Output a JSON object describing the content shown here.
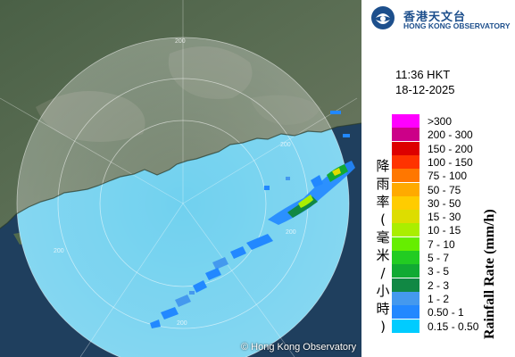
{
  "header": {
    "logo_cn": "香港天文台",
    "logo_en": "HONG KONG OBSERVATORY"
  },
  "timestamp": {
    "time": "11:36 HKT",
    "date": "18-12-2025"
  },
  "map": {
    "copyright": "© Hong Kong Observatory",
    "range_rings": [
      {
        "label": "200"
      },
      {
        "label": "200"
      },
      {
        "label": "200"
      },
      {
        "label": "200"
      },
      {
        "label": "200"
      }
    ]
  },
  "legend": {
    "title_cn": "降雨率(毫米/小時)",
    "title_en": "Rainfall Rate (mm/h)",
    "items": [
      {
        "label": ">300",
        "color": "#ff00ff"
      },
      {
        "label": "200 - 300",
        "color": "#cc0088"
      },
      {
        "label": "150 - 200",
        "color": "#dd0000"
      },
      {
        "label": "100 - 150",
        "color": "#ff3300"
      },
      {
        "label": "75 - 100",
        "color": "#ff7700"
      },
      {
        "label": "50 - 75",
        "color": "#ffaa00"
      },
      {
        "label": "30 - 50",
        "color": "#ffcc00"
      },
      {
        "label": "15 - 30",
        "color": "#dddd00"
      },
      {
        "label": "10 - 15",
        "color": "#aaee00"
      },
      {
        "label": "7 - 10",
        "color": "#66ee00"
      },
      {
        "label": "5 - 7",
        "color": "#22cc22"
      },
      {
        "label": "3 - 5",
        "color": "#11aa33"
      },
      {
        "label": "2 - 3",
        "color": "#118844"
      },
      {
        "label": "1 - 2",
        "color": "#4499ee"
      },
      {
        "label": "0.50 - 1",
        "color": "#2288ff"
      },
      {
        "label": "0.15 - 0.50",
        "color": "#00ccff"
      }
    ]
  }
}
